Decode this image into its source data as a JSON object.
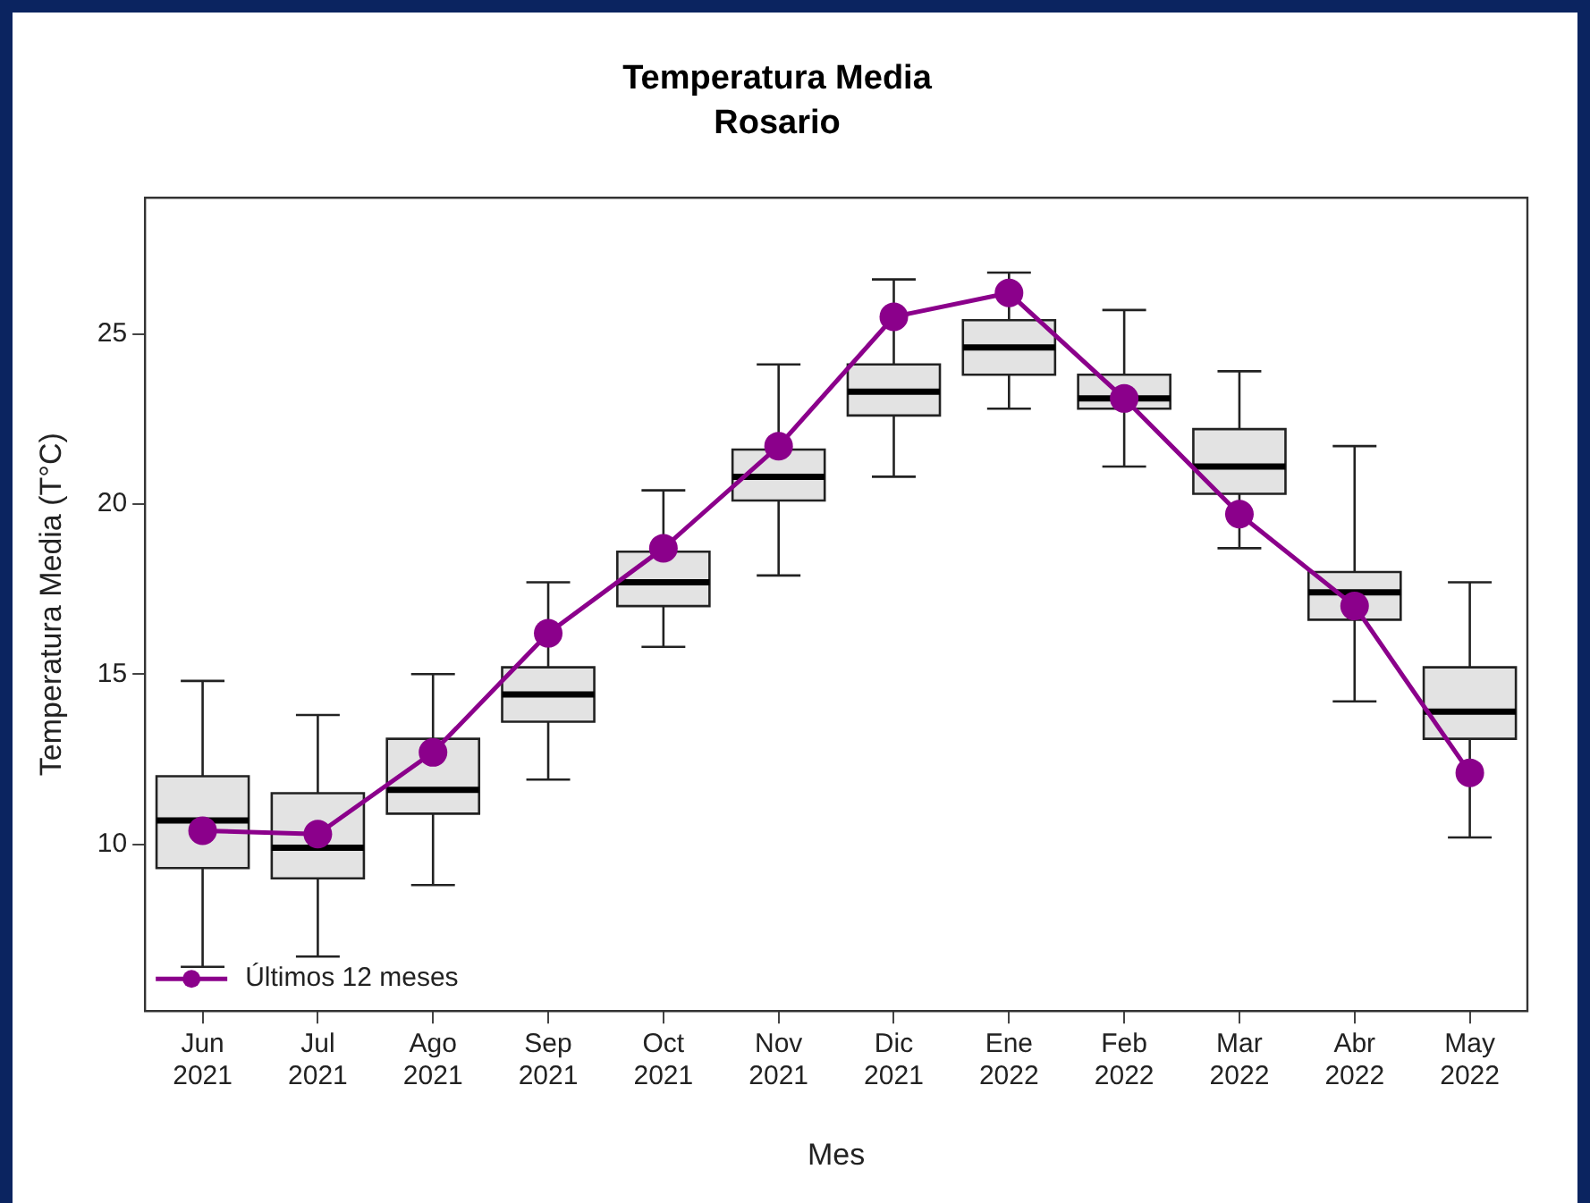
{
  "chart_data": {
    "type": "box",
    "title": "Temperatura Media",
    "subtitle": "Rosario",
    "xlabel": "Mes",
    "ylabel": "Temperatura Media (T°C)",
    "categories": [
      "Jun 2021",
      "Jul 2021",
      "Ago 2021",
      "Sep 2021",
      "Oct 2021",
      "Nov 2021",
      "Dic 2021",
      "Ene 2022",
      "Feb 2022",
      "Mar 2022",
      "Abr 2022",
      "May 2022"
    ],
    "series": [
      {
        "color": "#e3e3e3",
        "boxes": [
          {
            "low": 6.4,
            "q1": 9.3,
            "median": 10.7,
            "q3": 12.0,
            "high": 14.8
          },
          {
            "low": 6.7,
            "q1": 9.0,
            "median": 9.9,
            "q3": 11.5,
            "high": 13.8
          },
          {
            "low": 8.8,
            "q1": 10.9,
            "median": 11.6,
            "q3": 13.1,
            "high": 15.0
          },
          {
            "low": 11.9,
            "q1": 13.6,
            "median": 14.4,
            "q3": 15.2,
            "high": 17.7
          },
          {
            "low": 15.8,
            "q1": 17.0,
            "median": 17.7,
            "q3": 18.6,
            "high": 20.4
          },
          {
            "low": 17.9,
            "q1": 20.1,
            "median": 20.8,
            "q3": 21.6,
            "high": 24.1
          },
          {
            "low": 20.8,
            "q1": 22.6,
            "median": 23.3,
            "q3": 24.1,
            "high": 26.6
          },
          {
            "low": 22.8,
            "q1": 23.8,
            "median": 24.6,
            "q3": 25.4,
            "high": 26.8
          },
          {
            "low": 21.1,
            "q1": 22.8,
            "median": 23.1,
            "q3": 23.8,
            "high": 25.7
          },
          {
            "low": 18.7,
            "q1": 20.3,
            "median": 21.1,
            "q3": 22.2,
            "high": 23.9
          },
          {
            "low": 14.2,
            "q1": 16.6,
            "median": 17.4,
            "q3": 18.0,
            "high": 21.7
          },
          {
            "low": 10.2,
            "q1": 13.1,
            "median": 13.9,
            "q3": 15.2,
            "high": 17.7
          }
        ]
      },
      {
        "type": "line",
        "name": "Últimos 12 meses",
        "color": "#8b008b",
        "values": [
          10.4,
          10.3,
          12.7,
          16.2,
          18.7,
          21.7,
          25.5,
          26.2,
          23.1,
          19.7,
          17.0,
          12.1
        ]
      }
    ],
    "ylim": [
      5.1,
      29
    ],
    "yticks": [
      10,
      15,
      20,
      25
    ],
    "grid": false,
    "legend": "bottom left",
    "marker": "circle",
    "line_style": "solid"
  }
}
